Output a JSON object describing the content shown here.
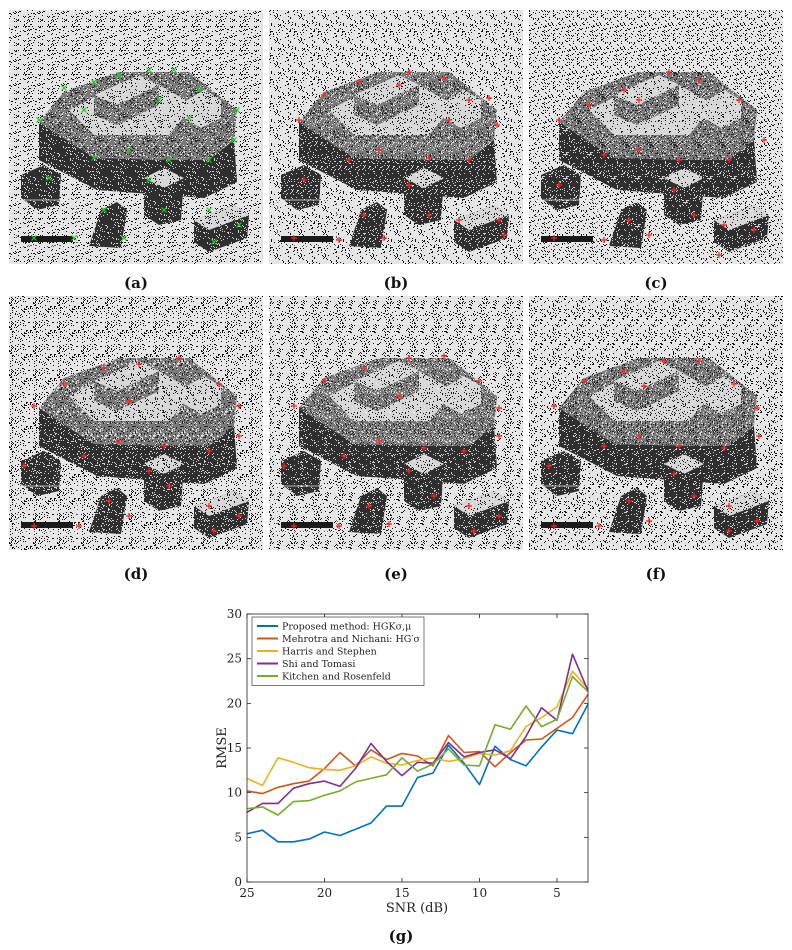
{
  "panels": [
    {
      "label": "(a)",
      "marker_color": "#22cc22",
      "marker": "x"
    },
    {
      "label": "(b)",
      "marker_color": "#ff2222",
      "marker": "+"
    },
    {
      "label": "(c)",
      "marker_color": "#ff2222",
      "marker": "+"
    },
    {
      "label": "(d)",
      "marker_color": "#ff2222",
      "marker": "+"
    },
    {
      "label": "(e)",
      "marker_color": "#ff2222",
      "marker": "+"
    },
    {
      "label": "(f)",
      "marker_color": "#ff2222",
      "marker": "+"
    }
  ],
  "chart_caption": "(g)",
  "chart_data": {
    "type": "line",
    "xlabel": "SNR (dB)",
    "ylabel": "RMSE",
    "xlim": [
      25,
      3
    ],
    "ylim": [
      0,
      30
    ],
    "xticks": [
      25,
      20,
      15,
      10,
      5
    ],
    "yticks": [
      0,
      5,
      10,
      15,
      20,
      25,
      30
    ],
    "legend_position": "top-left",
    "x": [
      25,
      24,
      23,
      22,
      21,
      20,
      19,
      18,
      17,
      16,
      15,
      14,
      13,
      12,
      11,
      10,
      9,
      8,
      7,
      6,
      5,
      4,
      3
    ],
    "series": [
      {
        "name": "Proposed method: HGKσ,μ",
        "color": "#0072BD",
        "values": [
          5.4,
          5.8,
          4.5,
          4.5,
          4.8,
          5.6,
          5.2,
          5.9,
          6.6,
          8.5,
          8.5,
          11.7,
          12.2,
          15.3,
          13.3,
          10.9,
          15.2,
          13.7,
          13.0,
          15.1,
          17.0,
          16.6,
          19.9
        ]
      },
      {
        "name": "Mehrotra and Nichani: HG′σ",
        "color": "#D95319",
        "values": [
          10.2,
          9.9,
          10.6,
          11.0,
          11.3,
          12.7,
          14.5,
          13.0,
          14.8,
          13.7,
          14.4,
          14.1,
          13.0,
          16.4,
          14.5,
          14.6,
          12.9,
          14.5,
          15.9,
          16.0,
          17.2,
          18.4,
          21.0
        ]
      },
      {
        "name": "Harris and Stephen",
        "color": "#EDB120",
        "values": [
          11.6,
          10.8,
          13.9,
          13.4,
          12.8,
          12.6,
          12.5,
          13.0,
          14.0,
          13.3,
          13.1,
          13.6,
          13.9,
          13.5,
          13.8,
          14.4,
          14.2,
          14.7,
          17.4,
          18.4,
          19.6,
          23.6,
          21.6
        ]
      },
      {
        "name": "Shi and Tomasi",
        "color": "#7E2F8E",
        "values": [
          7.8,
          8.8,
          8.8,
          10.5,
          11.0,
          11.3,
          10.7,
          12.7,
          15.5,
          13.5,
          11.9,
          13.4,
          13.3,
          15.6,
          14.0,
          14.5,
          14.8,
          13.8,
          16.3,
          19.5,
          18.1,
          25.5,
          21.4
        ]
      },
      {
        "name": "Kitchen and Rosenfeld",
        "color": "#77AC30",
        "values": [
          8.2,
          8.4,
          7.5,
          9.0,
          9.1,
          9.7,
          10.2,
          11.2,
          11.6,
          12.0,
          13.9,
          12.4,
          13.2,
          14.9,
          13.1,
          13.0,
          17.6,
          17.1,
          19.7,
          17.4,
          18.2,
          23.0,
          21.3
        ]
      }
    ]
  }
}
